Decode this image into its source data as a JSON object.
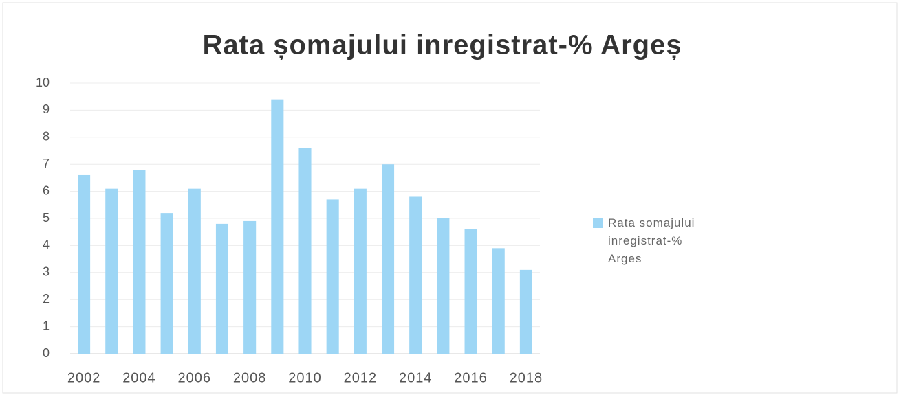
{
  "chart_data": {
    "type": "bar",
    "title": "Rata șomajului inregistrat-% Argeș",
    "categories": [
      "2002",
      null,
      "2004",
      null,
      "2006",
      null,
      "2008",
      null,
      "2010",
      null,
      "2012",
      null,
      "2014",
      null,
      "2016",
      null,
      "2018"
    ],
    "series": [
      {
        "name": "Rata somajului inregistrat-% Arges",
        "color": "#9dd6f5",
        "values": [
          6.6,
          6.1,
          6.8,
          5.2,
          6.1,
          4.8,
          4.9,
          9.4,
          7.6,
          5.7,
          6.1,
          7.0,
          5.8,
          5.0,
          4.6,
          3.9,
          3.1
        ]
      }
    ],
    "ylim": [
      0,
      10
    ],
    "yticks": [
      0,
      1,
      2,
      3,
      4,
      5,
      6,
      7,
      8,
      9,
      10
    ],
    "grid": true,
    "legend": "right"
  }
}
